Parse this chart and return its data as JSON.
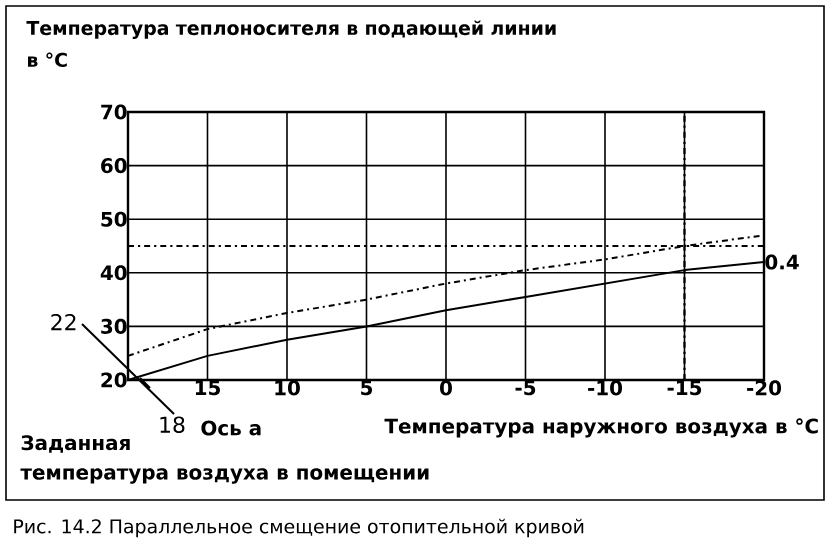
{
  "chart_data": {
    "type": "line",
    "ylabel": "Температура теплоносителя в подающей линии в °C",
    "xlabel": "Температура наружного воздуха в °C",
    "x": [
      20,
      15,
      10,
      5,
      0,
      -5,
      -10,
      -15,
      -20
    ],
    "series": [
      {
        "name": "0.4",
        "color": "#000000",
        "line_style": "solid",
        "values": [
          20,
          24.5,
          27.5,
          30,
          33,
          35.5,
          38,
          40.5,
          42
        ]
      },
      {
        "color": "#000000",
        "line_style": "dashdot",
        "values": [
          24.5,
          29.5,
          32.5,
          35,
          38,
          40.5,
          42.5,
          45,
          47
        ]
      }
    ],
    "xlim": [
      20,
      -20
    ],
    "xticks": [
      15,
      10,
      5,
      0,
      -5,
      -10,
      -15,
      -20
    ],
    "ylim": [
      20,
      70
    ],
    "yticks": [
      20,
      30,
      40,
      50,
      60,
      70
    ],
    "grid": true,
    "ref_lines": [
      {
        "axis": "y",
        "value": 45,
        "color": "#000000",
        "line_style": "dashdot"
      },
      {
        "axis": "x",
        "value": -15,
        "color": "#000000",
        "line_style": "dashdot"
      }
    ],
    "annotations": [
      "22",
      "18",
      "Ось a",
      "Заданная",
      "температура воздуха в помещении",
      "Рис. 14.2 Параллельное смещение отопительной кривой"
    ]
  }
}
